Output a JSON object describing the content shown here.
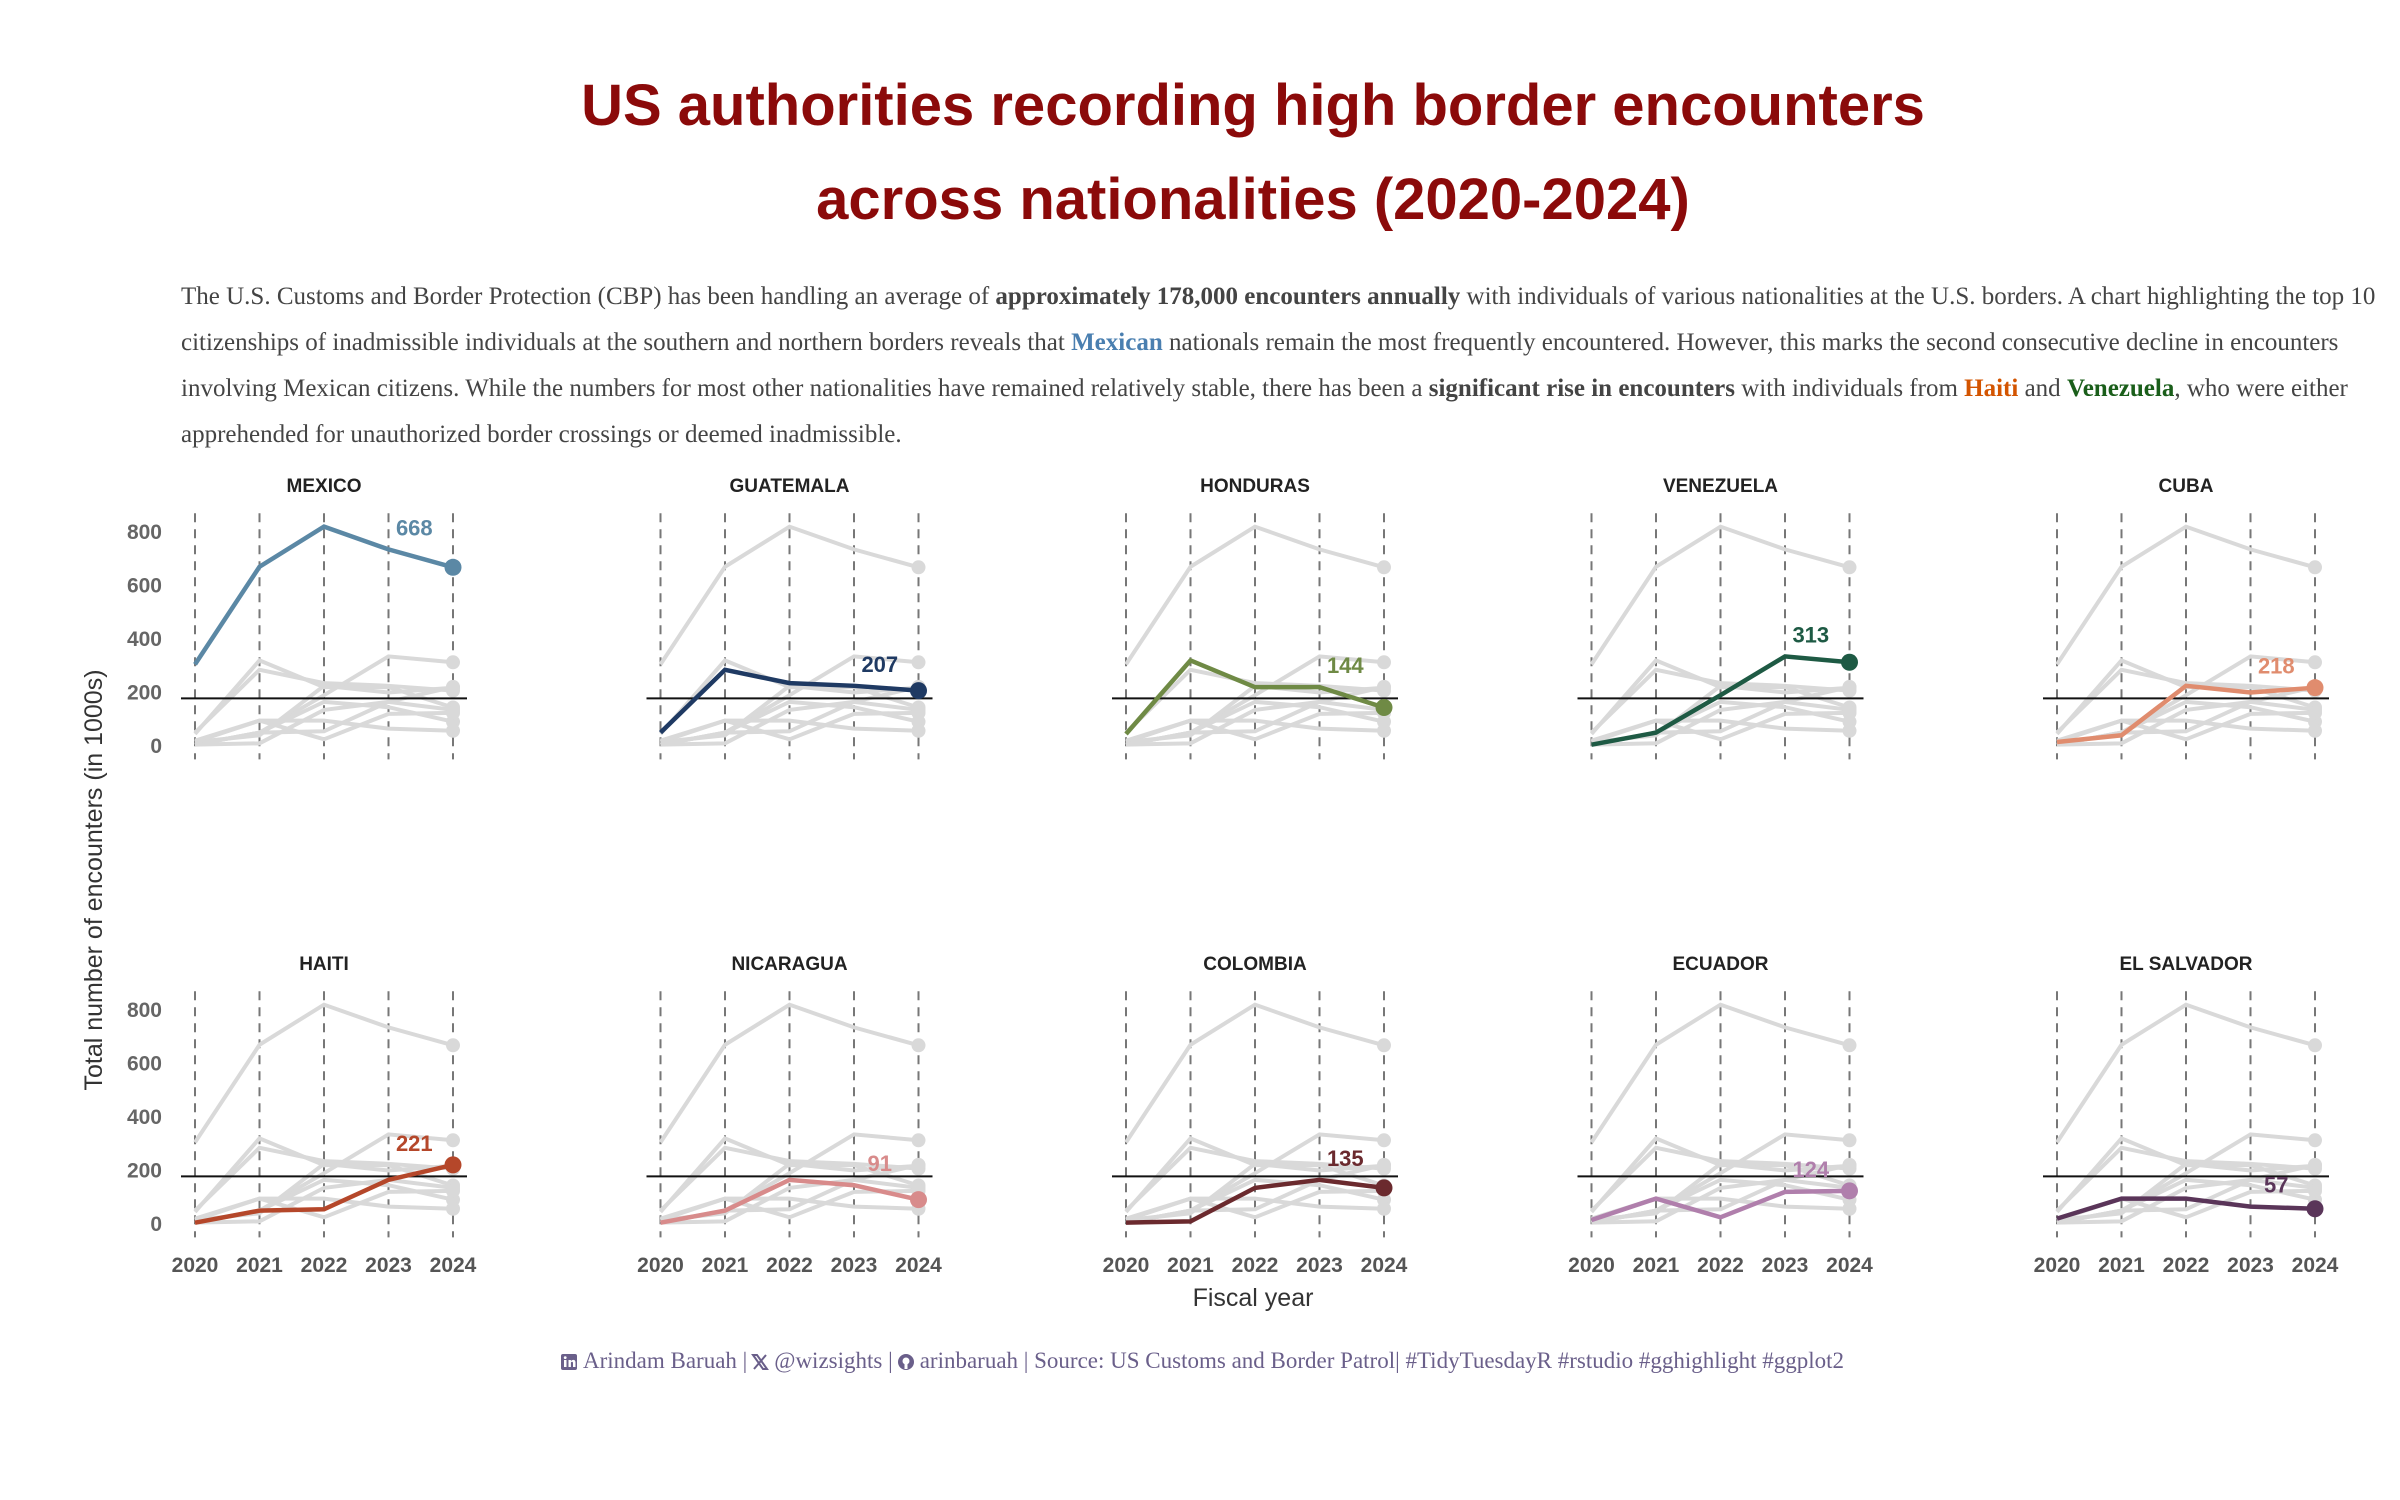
{
  "chart_data": {
    "type": "line",
    "title": [
      "US authorities recording high border encounters",
      "across nationalities (2020-2024)"
    ],
    "subtitle": [
      "The U.S. Customs and Border Protection (CBP) has been handling an average of ",
      "approximately 178,000 encounters annually",
      " with individuals of various nationalities at the U.S. borders. A chart highlighting the top 10 citizenships of inadmissible individuals at the southern and northern borders reveals that ",
      "Mexican",
      " nationals remain the most frequently encountered. However, this marks the second consecutive decline in encounters involving Mexican citizens. While the numbers for most other nationalities have remained relatively stable, there has been a ",
      "significant rise in encounters",
      " with individuals from ",
      "Haiti",
      " and ",
      "Venezuela",
      ", who were either apprehended for unauthorized border crossings or deemed inadmissible."
    ],
    "x_label": "Fiscal year",
    "y_label": "Total number of encounters (in 1000s)",
    "x": [
      2020,
      2021,
      2022,
      2023,
      2024
    ],
    "ylim": [
      -50,
      870
    ],
    "yticks": [
      0,
      200,
      400,
      600,
      800
    ],
    "reference_line": 178,
    "series": [
      {
        "name": "MEXICO",
        "color": "#5b88a5",
        "values": [
          305,
          670,
          820,
          735,
          668
        ]
      },
      {
        "name": "GUATEMALA",
        "color": "#1f3a63",
        "values": [
          50,
          285,
          235,
          225,
          207
        ]
      },
      {
        "name": "HONDURAS",
        "color": "#6f8a45",
        "values": [
          45,
          320,
          220,
          220,
          144
        ]
      },
      {
        "name": "VENEZUELA",
        "color": "#1e5a44",
        "values": [
          5,
          50,
          190,
          335,
          313
        ]
      },
      {
        "name": "CUBA",
        "color": "#e08c6e",
        "values": [
          15,
          40,
          225,
          200,
          218
        ]
      },
      {
        "name": "HAITI",
        "color": "#b5472a",
        "values": [
          5,
          50,
          55,
          165,
          221
        ]
      },
      {
        "name": "NICARAGUA",
        "color": "#d88b8b",
        "values": [
          5,
          50,
          165,
          145,
          91
        ]
      },
      {
        "name": "COLOMBIA",
        "color": "#6b2a2e",
        "values": [
          5,
          10,
          135,
          165,
          135
        ]
      },
      {
        "name": "ECUADOR",
        "color": "#b07fac",
        "values": [
          15,
          95,
          25,
          120,
          124
        ]
      },
      {
        "name": "EL SALVADOR",
        "color": "#5a3559",
        "values": [
          20,
          95,
          95,
          65,
          57
        ]
      }
    ],
    "caption": [
      "Arindam Baruah |",
      "@wizsights |",
      "arinbaruah | Source: US Customs and Border Patrol| #TidyTuesdayR #rstudio #gghighlight #ggplot2"
    ]
  }
}
